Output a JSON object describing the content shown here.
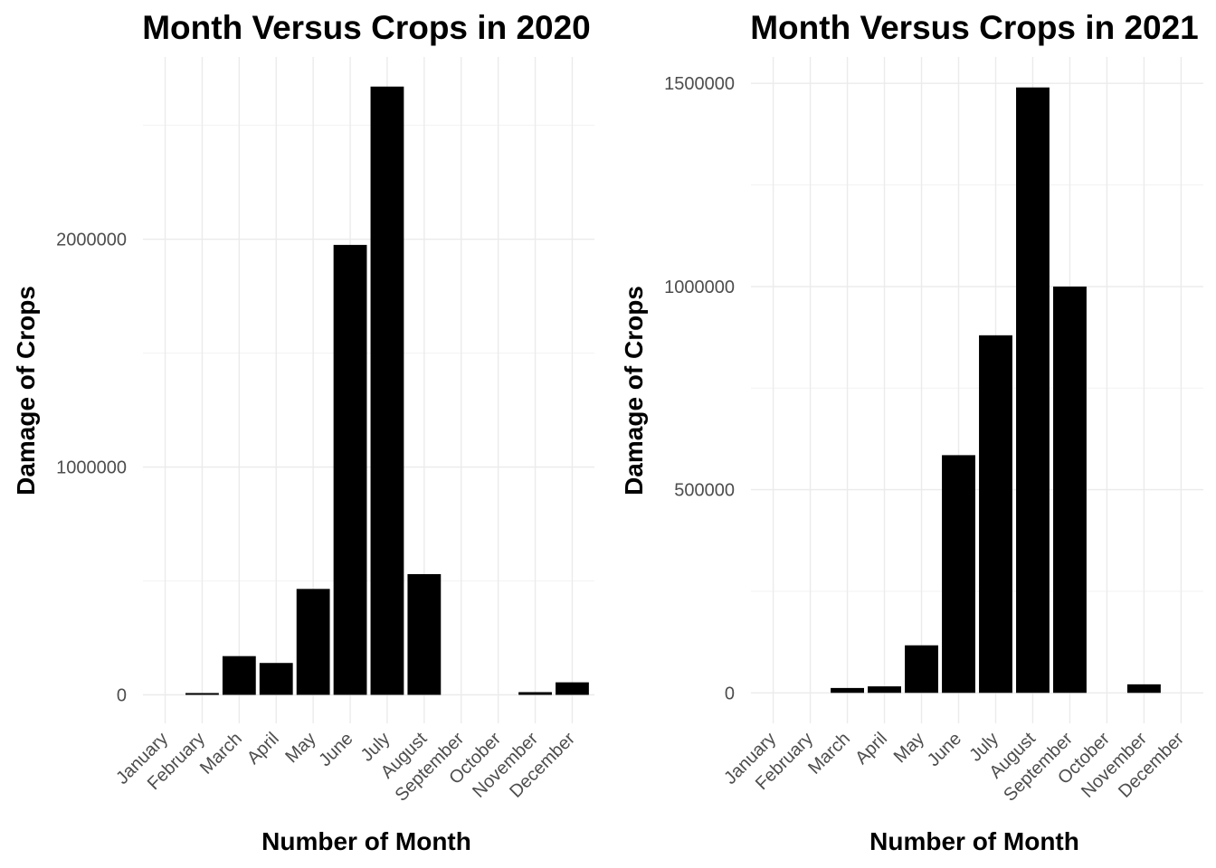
{
  "chart_data": [
    {
      "type": "bar",
      "title": "Month Versus Crops in 2020",
      "xlabel": "Number of Month",
      "ylabel": "Damage of Crops",
      "categories": [
        "January",
        "February",
        "March",
        "April",
        "May",
        "June",
        "July",
        "August",
        "September",
        "October",
        "November",
        "December"
      ],
      "values": [
        0,
        8000,
        170000,
        140000,
        465000,
        1975000,
        2670000,
        530000,
        0,
        0,
        12000,
        55000
      ],
      "ylim": [
        -125000,
        2800000
      ],
      "yticks": [
        0,
        1000000,
        2000000
      ],
      "ytick_labels": [
        "0",
        "1000000",
        "2000000"
      ],
      "grid": true,
      "bar_color": "#000000"
    },
    {
      "type": "bar",
      "title": "Month Versus Crops in 2021",
      "xlabel": "Number of Month",
      "ylabel": "Damage of Crops",
      "categories": [
        "January",
        "February",
        "March",
        "April",
        "May",
        "June",
        "July",
        "August",
        "September",
        "October",
        "November",
        "December"
      ],
      "values": [
        0,
        0,
        12000,
        16000,
        117000,
        585000,
        880000,
        1490000,
        1000000,
        0,
        21000,
        0
      ],
      "ylim": [
        -75000,
        1565000
      ],
      "yticks": [
        0,
        500000,
        1000000,
        1500000
      ],
      "ytick_labels": [
        "0",
        "500000",
        "1000000",
        "1500000"
      ],
      "grid": true,
      "bar_color": "#000000"
    }
  ]
}
